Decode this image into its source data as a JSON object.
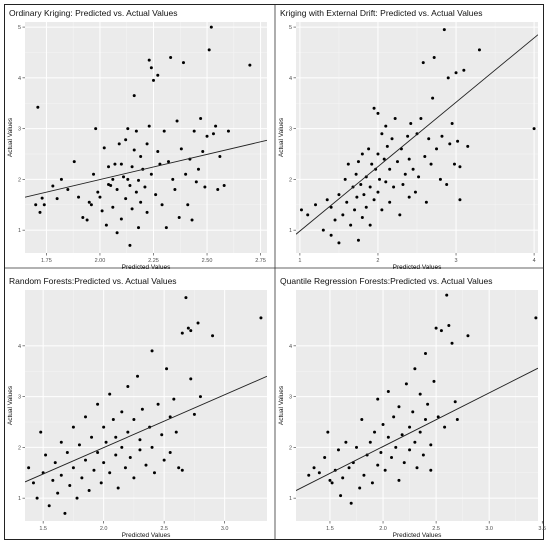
{
  "chart_data": [
    {
      "type": "scatter",
      "title": "Ordinary Kriging: Predicted vs. Actual Values",
      "xlabel": "Predicted Values",
      "ylabel": "Actual Values",
      "xlim": [
        1.65,
        2.78
      ],
      "ylim": [
        0.55,
        5.1
      ],
      "xticks": [
        "1.75",
        "2.00",
        "2.25",
        "2.50",
        "2.75"
      ],
      "xtick_values": [
        1.75,
        2.0,
        2.25,
        2.5,
        2.75
      ],
      "yticks": [
        "1",
        "2",
        "3",
        "4",
        "5"
      ],
      "ytick_values": [
        1,
        2,
        3,
        4,
        5
      ],
      "trend_line": [
        [
          1.65,
          1.65
        ],
        [
          2.78,
          2.77
        ]
      ],
      "points": [
        [
          1.71,
          3.42
        ],
        [
          1.7,
          1.5
        ],
        [
          1.72,
          1.35
        ],
        [
          1.73,
          1.63
        ],
        [
          1.74,
          1.5
        ],
        [
          1.78,
          1.87
        ],
        [
          1.8,
          1.62
        ],
        [
          1.82,
          2.0
        ],
        [
          1.85,
          1.8
        ],
        [
          1.88,
          2.35
        ],
        [
          1.9,
          1.65
        ],
        [
          1.92,
          1.25
        ],
        [
          1.94,
          1.2
        ],
        [
          1.95,
          1.55
        ],
        [
          1.96,
          1.5
        ],
        [
          1.97,
          2.1
        ],
        [
          1.98,
          3.0
        ],
        [
          1.99,
          1.75
        ],
        [
          2.0,
          1.65
        ],
        [
          2.01,
          1.38
        ],
        [
          2.02,
          2.62
        ],
        [
          2.03,
          1.1
        ],
        [
          2.04,
          2.25
        ],
        [
          2.04,
          1.9
        ],
        [
          2.05,
          1.88
        ],
        [
          2.06,
          2.0
        ],
        [
          2.06,
          1.45
        ],
        [
          2.07,
          2.3
        ],
        [
          2.08,
          0.95
        ],
        [
          2.08,
          1.8
        ],
        [
          2.09,
          2.7
        ],
        [
          2.1,
          2.3
        ],
        [
          2.1,
          1.22
        ],
        [
          2.11,
          2.05
        ],
        [
          2.12,
          2.78
        ],
        [
          2.12,
          1.62
        ],
        [
          2.13,
          3.0
        ],
        [
          2.13,
          2.0
        ],
        [
          2.14,
          1.88
        ],
        [
          2.14,
          0.7
        ],
        [
          2.15,
          2.25
        ],
        [
          2.15,
          1.42
        ],
        [
          2.16,
          3.65
        ],
        [
          2.16,
          2.58
        ],
        [
          2.17,
          2.95
        ],
        [
          2.17,
          1.75
        ],
        [
          2.18,
          1.98
        ],
        [
          2.18,
          1.05
        ],
        [
          2.19,
          2.45
        ],
        [
          2.19,
          1.55
        ],
        [
          2.2,
          2.2
        ],
        [
          2.21,
          1.85
        ],
        [
          2.22,
          1.35
        ],
        [
          2.22,
          2.7
        ],
        [
          2.23,
          4.35
        ],
        [
          2.23,
          3.05
        ],
        [
          2.24,
          4.2
        ],
        [
          2.24,
          2.1
        ],
        [
          2.25,
          3.95
        ],
        [
          2.26,
          1.7
        ],
        [
          2.27,
          4.05
        ],
        [
          2.27,
          2.55
        ],
        [
          2.28,
          2.3
        ],
        [
          2.29,
          1.5
        ],
        [
          2.3,
          2.95
        ],
        [
          2.31,
          1.05
        ],
        [
          2.32,
          2.35
        ],
        [
          2.33,
          4.4
        ],
        [
          2.34,
          2.0
        ],
        [
          2.35,
          1.8
        ],
        [
          2.36,
          3.15
        ],
        [
          2.37,
          1.25
        ],
        [
          2.38,
          2.6
        ],
        [
          2.39,
          4.3
        ],
        [
          2.4,
          2.1
        ],
        [
          2.41,
          1.5
        ],
        [
          2.42,
          2.4
        ],
        [
          2.43,
          1.2
        ],
        [
          2.44,
          2.95
        ],
        [
          2.45,
          1.95
        ],
        [
          2.46,
          2.2
        ],
        [
          2.47,
          3.2
        ],
        [
          2.48,
          2.55
        ],
        [
          2.49,
          1.85
        ],
        [
          2.5,
          2.85
        ],
        [
          2.51,
          4.55
        ],
        [
          2.52,
          5.0
        ],
        [
          2.53,
          2.9
        ],
        [
          2.54,
          3.05
        ],
        [
          2.55,
          1.8
        ],
        [
          2.56,
          2.45
        ],
        [
          2.58,
          1.88
        ],
        [
          2.6,
          2.95
        ],
        [
          2.7,
          4.25
        ]
      ]
    },
    {
      "type": "scatter",
      "title": "Kriging with External Drift: Predicted vs. Actual Values",
      "xlabel": "Predicted Values",
      "ylabel": "Actual Values",
      "xlim": [
        0.95,
        4.05
      ],
      "ylim": [
        0.55,
        5.1
      ],
      "xticks": [
        "1",
        "2",
        "3",
        "4"
      ],
      "xtick_values": [
        1,
        2,
        3,
        4
      ],
      "yticks": [
        "1",
        "2",
        "3",
        "4",
        "5"
      ],
      "ytick_values": [
        1,
        2,
        3,
        4,
        5
      ],
      "trend_line": [
        [
          0.95,
          0.92
        ],
        [
          4.05,
          4.85
        ]
      ],
      "points": [
        [
          1.02,
          1.4
        ],
        [
          1.1,
          1.3
        ],
        [
          1.2,
          1.5
        ],
        [
          1.3,
          1.0
        ],
        [
          1.35,
          1.6
        ],
        [
          1.4,
          0.9
        ],
        [
          1.4,
          1.45
        ],
        [
          1.45,
          1.2
        ],
        [
          1.5,
          1.7
        ],
        [
          1.5,
          0.75
        ],
        [
          1.55,
          1.3
        ],
        [
          1.58,
          2.0
        ],
        [
          1.6,
          1.55
        ],
        [
          1.62,
          2.3
        ],
        [
          1.65,
          1.1
        ],
        [
          1.68,
          1.85
        ],
        [
          1.7,
          1.4
        ],
        [
          1.72,
          2.1
        ],
        [
          1.73,
          1.65
        ],
        [
          1.75,
          2.35
        ],
        [
          1.75,
          0.8
        ],
        [
          1.78,
          1.9
        ],
        [
          1.8,
          1.25
        ],
        [
          1.8,
          2.5
        ],
        [
          1.82,
          1.7
        ],
        [
          1.85,
          2.05
        ],
        [
          1.85,
          1.45
        ],
        [
          1.88,
          2.6
        ],
        [
          1.9,
          1.85
        ],
        [
          1.9,
          1.1
        ],
        [
          1.92,
          2.3
        ],
        [
          1.95,
          3.4
        ],
        [
          1.95,
          1.6
        ],
        [
          1.97,
          2.2
        ],
        [
          2.0,
          2.5
        ],
        [
          2.0,
          1.75
        ],
        [
          2.0,
          3.3
        ],
        [
          2.02,
          2.0
        ],
        [
          2.05,
          2.9
        ],
        [
          2.05,
          1.4
        ],
        [
          2.08,
          2.4
        ],
        [
          2.1,
          1.95
        ],
        [
          2.1,
          3.05
        ],
        [
          2.12,
          2.65
        ],
        [
          2.15,
          1.55
        ],
        [
          2.15,
          2.2
        ],
        [
          2.18,
          2.8
        ],
        [
          2.2,
          1.85
        ],
        [
          2.22,
          3.2
        ],
        [
          2.25,
          2.35
        ],
        [
          2.28,
          1.3
        ],
        [
          2.3,
          2.6
        ],
        [
          2.32,
          1.9
        ],
        [
          2.35,
          2.1
        ],
        [
          2.38,
          2.85
        ],
        [
          2.4,
          2.4
        ],
        [
          2.4,
          1.65
        ],
        [
          2.42,
          3.1
        ],
        [
          2.45,
          2.2
        ],
        [
          2.48,
          1.75
        ],
        [
          2.5,
          2.9
        ],
        [
          2.52,
          2.05
        ],
        [
          2.55,
          3.2
        ],
        [
          2.58,
          4.3
        ],
        [
          2.6,
          2.45
        ],
        [
          2.62,
          1.55
        ],
        [
          2.65,
          2.8
        ],
        [
          2.68,
          2.3
        ],
        [
          2.7,
          3.6
        ],
        [
          2.72,
          4.4
        ],
        [
          2.75,
          2.6
        ],
        [
          2.8,
          2.0
        ],
        [
          2.82,
          2.85
        ],
        [
          2.85,
          4.95
        ],
        [
          2.88,
          1.9
        ],
        [
          2.9,
          4.0
        ],
        [
          2.92,
          2.7
        ],
        [
          2.95,
          3.1
        ],
        [
          2.98,
          2.3
        ],
        [
          3.0,
          4.1
        ],
        [
          3.02,
          2.75
        ],
        [
          3.05,
          2.25
        ],
        [
          3.05,
          1.6
        ],
        [
          3.1,
          4.15
        ],
        [
          3.15,
          2.65
        ],
        [
          3.3,
          4.55
        ],
        [
          4.0,
          3.0
        ]
      ]
    },
    {
      "type": "scatter",
      "title": "Random Forests:Predicted vs. Actual Values",
      "xlabel": "Predicted Values",
      "ylabel": "Actual Values",
      "xlim": [
        1.35,
        3.35
      ],
      "ylim": [
        0.55,
        5.1
      ],
      "xticks": [
        "1.5",
        "2.0",
        "2.5",
        "3.0"
      ],
      "xtick_values": [
        1.5,
        2.0,
        2.5,
        3.0
      ],
      "yticks": [
        "1",
        "2",
        "3",
        "4"
      ],
      "ytick_values": [
        1,
        2,
        3,
        4
      ],
      "trend_line": [
        [
          1.35,
          1.32
        ],
        [
          3.35,
          3.4
        ]
      ],
      "points": [
        [
          1.38,
          1.6
        ],
        [
          1.42,
          1.3
        ],
        [
          1.45,
          1.0
        ],
        [
          1.48,
          2.3
        ],
        [
          1.5,
          1.5
        ],
        [
          1.52,
          1.85
        ],
        [
          1.55,
          0.85
        ],
        [
          1.58,
          1.35
        ],
        [
          1.6,
          1.7
        ],
        [
          1.62,
          1.1
        ],
        [
          1.65,
          2.1
        ],
        [
          1.65,
          1.45
        ],
        [
          1.68,
          0.7
        ],
        [
          1.7,
          1.9
        ],
        [
          1.72,
          1.25
        ],
        [
          1.75,
          2.4
        ],
        [
          1.75,
          1.6
        ],
        [
          1.78,
          1.0
        ],
        [
          1.8,
          2.05
        ],
        [
          1.82,
          1.4
        ],
        [
          1.85,
          2.6
        ],
        [
          1.85,
          1.75
        ],
        [
          1.88,
          1.15
        ],
        [
          1.9,
          2.2
        ],
        [
          1.92,
          1.55
        ],
        [
          1.95,
          2.85
        ],
        [
          1.95,
          1.9
        ],
        [
          1.98,
          1.3
        ],
        [
          2.0,
          2.4
        ],
        [
          2.0,
          1.7
        ],
        [
          2.02,
          2.1
        ],
        [
          2.05,
          3.05
        ],
        [
          2.05,
          1.5
        ],
        [
          2.08,
          2.55
        ],
        [
          2.1,
          1.85
        ],
        [
          2.1,
          2.2
        ],
        [
          2.12,
          1.2
        ],
        [
          2.15,
          2.7
        ],
        [
          2.15,
          2.0
        ],
        [
          2.18,
          1.6
        ],
        [
          2.2,
          3.2
        ],
        [
          2.2,
          2.3
        ],
        [
          2.22,
          1.8
        ],
        [
          2.25,
          2.55
        ],
        [
          2.25,
          1.4
        ],
        [
          2.28,
          3.4
        ],
        [
          2.3,
          2.15
        ],
        [
          2.3,
          1.95
        ],
        [
          2.32,
          2.75
        ],
        [
          2.35,
          1.65
        ],
        [
          2.38,
          2.4
        ],
        [
          2.4,
          3.9
        ],
        [
          2.4,
          2.0
        ],
        [
          2.42,
          1.5
        ],
        [
          2.45,
          2.85
        ],
        [
          2.48,
          2.25
        ],
        [
          2.5,
          1.75
        ],
        [
          2.52,
          3.55
        ],
        [
          2.55,
          2.6
        ],
        [
          2.55,
          1.9
        ],
        [
          2.58,
          2.95
        ],
        [
          2.6,
          2.3
        ],
        [
          2.62,
          1.6
        ],
        [
          2.65,
          1.55
        ],
        [
          2.65,
          4.25
        ],
        [
          2.68,
          4.95
        ],
        [
          2.7,
          4.35
        ],
        [
          2.72,
          4.3
        ],
        [
          2.72,
          3.35
        ],
        [
          2.75,
          2.65
        ],
        [
          2.78,
          4.45
        ],
        [
          2.8,
          3.0
        ],
        [
          2.9,
          4.2
        ],
        [
          3.3,
          4.55
        ]
      ]
    },
    {
      "type": "scatter",
      "title": "Quantile Regression Forests:Predicted vs. Actual Values",
      "xlabel": "Predicted Values",
      "ylabel": "Actual Values",
      "xlim": [
        1.18,
        3.46
      ],
      "ylim": [
        0.55,
        5.1
      ],
      "xticks": [
        "1.5",
        "2.0",
        "2.5",
        "3.0",
        "3.5"
      ],
      "xtick_values": [
        1.5,
        2.0,
        2.5,
        3.0,
        3.5
      ],
      "yticks": [
        "1",
        "2",
        "3",
        "4"
      ],
      "ytick_values": [
        1,
        2,
        3,
        4
      ],
      "trend_line": [
        [
          1.18,
          1.15
        ],
        [
          3.46,
          3.56
        ]
      ],
      "points": [
        [
          1.3,
          1.45
        ],
        [
          1.35,
          1.6
        ],
        [
          1.4,
          1.5
        ],
        [
          1.45,
          1.8
        ],
        [
          1.48,
          2.3
        ],
        [
          1.5,
          1.35
        ],
        [
          1.52,
          1.3
        ],
        [
          1.55,
          1.55
        ],
        [
          1.58,
          1.95
        ],
        [
          1.6,
          1.05
        ],
        [
          1.62,
          1.4
        ],
        [
          1.65,
          2.1
        ],
        [
          1.68,
          1.6
        ],
        [
          1.7,
          0.9
        ],
        [
          1.72,
          1.7
        ],
        [
          1.75,
          2.0
        ],
        [
          1.78,
          1.2
        ],
        [
          1.8,
          2.55
        ],
        [
          1.82,
          1.45
        ],
        [
          1.85,
          1.85
        ],
        [
          1.88,
          2.1
        ],
        [
          1.9,
          1.3
        ],
        [
          1.92,
          2.3
        ],
        [
          1.95,
          1.65
        ],
        [
          1.95,
          2.95
        ],
        [
          1.98,
          1.9
        ],
        [
          2.0,
          2.45
        ],
        [
          2.02,
          1.55
        ],
        [
          2.05,
          2.2
        ],
        [
          2.05,
          3.1
        ],
        [
          2.08,
          1.8
        ],
        [
          2.1,
          2.6
        ],
        [
          2.12,
          2.0
        ],
        [
          2.15,
          1.35
        ],
        [
          2.15,
          2.8
        ],
        [
          2.18,
          2.25
        ],
        [
          2.2,
          1.7
        ],
        [
          2.22,
          3.25
        ],
        [
          2.25,
          2.4
        ],
        [
          2.25,
          1.95
        ],
        [
          2.28,
          2.7
        ],
        [
          2.3,
          3.55
        ],
        [
          2.3,
          2.1
        ],
        [
          2.32,
          1.6
        ],
        [
          2.35,
          3.05
        ],
        [
          2.35,
          2.3
        ],
        [
          2.38,
          1.85
        ],
        [
          2.4,
          3.85
        ],
        [
          2.4,
          2.55
        ],
        [
          2.42,
          2.85
        ],
        [
          2.45,
          2.05
        ],
        [
          2.45,
          1.55
        ],
        [
          2.48,
          3.3
        ],
        [
          2.5,
          4.35
        ],
        [
          2.52,
          2.6
        ],
        [
          2.55,
          4.3
        ],
        [
          2.58,
          2.4
        ],
        [
          2.6,
          5.0
        ],
        [
          2.62,
          4.4
        ],
        [
          2.65,
          4.05
        ],
        [
          2.68,
          2.9
        ],
        [
          2.7,
          2.55
        ],
        [
          2.8,
          4.2
        ],
        [
          3.44,
          4.55
        ]
      ]
    }
  ]
}
